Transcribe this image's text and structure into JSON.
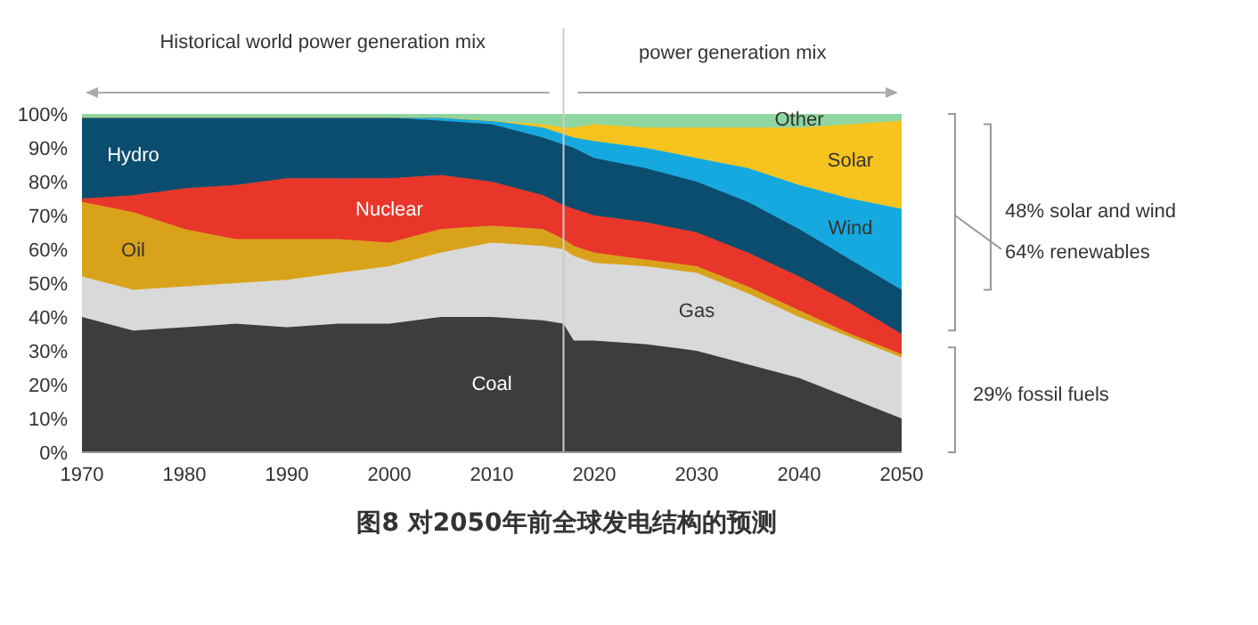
{
  "chart_data": {
    "type": "area",
    "stacked": true,
    "x": [
      1970,
      1975,
      1980,
      1985,
      1990,
      1995,
      2000,
      2005,
      2010,
      2015,
      2017,
      2018,
      2020,
      2025,
      2030,
      2035,
      2040,
      2045,
      2050
    ],
    "series": [
      {
        "name": "Coal",
        "color": "#3d3d3f",
        "values": [
          40,
          36,
          37,
          38,
          37,
          38,
          38,
          40,
          40,
          39,
          38,
          33,
          33,
          32,
          30,
          26,
          22,
          16,
          10
        ]
      },
      {
        "name": "Gas",
        "color": "#d9d9d9",
        "values": [
          12,
          12,
          12,
          12,
          14,
          15,
          17,
          19,
          22,
          22,
          22,
          25,
          23,
          23,
          23,
          21,
          18,
          18,
          18
        ]
      },
      {
        "name": "Oil",
        "color": "#d9a21b",
        "values": [
          22,
          23,
          17,
          13,
          12,
          10,
          7,
          7,
          5,
          5,
          3,
          3,
          3,
          2,
          2,
          2,
          2,
          1,
          1
        ]
      },
      {
        "name": "Nuclear",
        "color": "#e8362a",
        "values": [
          1,
          5,
          12,
          16,
          18,
          18,
          19,
          16,
          13,
          10,
          10,
          11,
          11,
          11,
          10,
          10,
          10,
          9,
          6
        ]
      },
      {
        "name": "Hydro",
        "color": "#0b4d6e",
        "values": [
          24,
          23,
          21,
          20,
          18,
          18,
          18,
          16,
          17,
          17,
          18,
          18,
          17,
          16,
          15,
          15,
          14,
          13,
          13
        ]
      },
      {
        "name": "Wind",
        "color": "#15a9e0",
        "values": [
          0,
          0,
          0,
          0,
          0,
          0,
          0,
          1,
          1,
          3,
          3,
          3,
          5,
          6,
          7,
          10,
          13,
          18,
          24
        ]
      },
      {
        "name": "Solar",
        "color": "#f7c31e",
        "values": [
          0,
          0,
          0,
          0,
          0,
          0,
          0,
          0,
          0,
          1,
          2,
          3,
          5,
          6,
          9,
          12,
          17,
          22,
          26
        ]
      },
      {
        "name": "Other",
        "color": "#8fd6a0",
        "values": [
          1,
          1,
          1,
          1,
          1,
          1,
          1,
          1,
          2,
          3,
          4,
          4,
          3,
          4,
          4,
          4,
          4,
          3,
          2
        ]
      }
    ],
    "xlim": [
      1970,
      2050
    ],
    "xticks": [
      1970,
      1980,
      1990,
      2000,
      2010,
      2020,
      2030,
      2040,
      2050
    ],
    "ylim": [
      0,
      100
    ],
    "yticks": [
      {
        "value": 0,
        "label": "0%"
      },
      {
        "value": 10,
        "label": "10%"
      },
      {
        "value": 20,
        "label": "20%"
      },
      {
        "value": 30,
        "label": "30%"
      },
      {
        "value": 40,
        "label": "40%"
      },
      {
        "value": 50,
        "label": "50%"
      },
      {
        "value": 60,
        "label": "60%"
      },
      {
        "value": 70,
        "label": "70%"
      },
      {
        "value": 80,
        "label": "80%"
      },
      {
        "value": 90,
        "label": "90%"
      },
      {
        "value": 100,
        "label": "100%"
      }
    ],
    "ref_lines": [
      {
        "axis": "x",
        "value": 2017,
        "label": null,
        "color": "#cccccc"
      }
    ],
    "annotations": [
      "Historical world power generation mix",
      "power generation mix",
      "48% solar and wind",
      "64% renewables",
      "29% fossil fuels",
      "图8 对2050年前全球发电结构的预测"
    ],
    "grid": false,
    "legend": false
  }
}
